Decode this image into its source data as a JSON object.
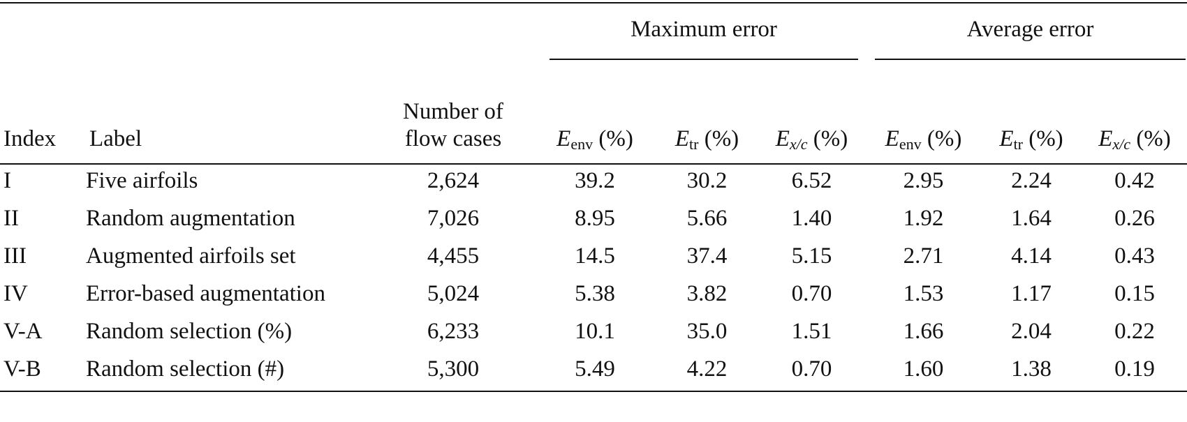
{
  "table": {
    "group_headers": [
      {
        "text": "Maximum error",
        "span": 3
      },
      {
        "text": "Average error",
        "span": 3
      }
    ],
    "columns": [
      {
        "lines": [
          "Index"
        ],
        "align": "left"
      },
      {
        "lines": [
          "Label"
        ],
        "align": "left"
      },
      {
        "lines": [
          "Number of",
          "flow cases"
        ],
        "align": "center"
      },
      {
        "symbol": "E",
        "subscript": "env",
        "unit": "(%)",
        "align": "center"
      },
      {
        "symbol": "E",
        "subscript": "tr",
        "unit": "(%)",
        "align": "center"
      },
      {
        "symbol": "E",
        "subscript": "x/c",
        "unit": "(%)",
        "italic_subscript": true,
        "align": "center"
      },
      {
        "symbol": "E",
        "subscript": "env",
        "unit": "(%)",
        "align": "center"
      },
      {
        "symbol": "E",
        "subscript": "tr",
        "unit": "(%)",
        "align": "center"
      },
      {
        "symbol": "E",
        "subscript": "x/c",
        "unit": "(%)",
        "italic_subscript": true,
        "align": "center"
      }
    ],
    "rows": [
      [
        "I",
        "Five airfoils",
        "2,624",
        "39.2",
        "30.2",
        "6.52",
        "2.95",
        "2.24",
        "0.42"
      ],
      [
        "II",
        "Random augmentation",
        "7,026",
        "8.95",
        "5.66",
        "1.40",
        "1.92",
        "1.64",
        "0.26"
      ],
      [
        "III",
        "Augmented airfoils set",
        "4,455",
        "14.5",
        "37.4",
        "5.15",
        "2.71",
        "4.14",
        "0.43"
      ],
      [
        "IV",
        "Error-based augmentation",
        "5,024",
        "5.38",
        "3.82",
        "0.70",
        "1.53",
        "1.17",
        "0.15"
      ],
      [
        "V-A",
        "Random selection (%)",
        "6,233",
        "10.1",
        "35.0",
        "1.51",
        "1.66",
        "2.04",
        "0.22"
      ],
      [
        "V-B",
        "Random selection (#)",
        "5,300",
        "5.49",
        "4.22",
        "0.70",
        "1.60",
        "1.38",
        "0.19"
      ]
    ]
  }
}
